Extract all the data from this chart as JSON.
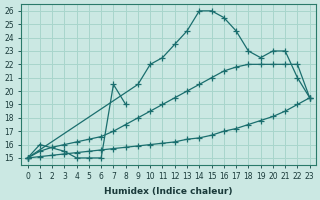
{
  "xlabel": "Humidex (Indice chaleur)",
  "bg_color": "#cbe8e3",
  "grid_color": "#a8d5cc",
  "line_color": "#1a6e6e",
  "xlim": [
    -0.5,
    23.5
  ],
  "ylim": [
    14.5,
    26.5
  ],
  "xticks": [
    0,
    1,
    2,
    3,
    4,
    5,
    6,
    7,
    8,
    9,
    10,
    11,
    12,
    13,
    14,
    15,
    16,
    17,
    18,
    19,
    20,
    21,
    22,
    23
  ],
  "yticks": [
    15,
    16,
    17,
    18,
    19,
    20,
    21,
    22,
    23,
    24,
    25,
    26
  ],
  "curve_peak_x": [
    0,
    9,
    10,
    11,
    12,
    13,
    14,
    15,
    16,
    17,
    18,
    19,
    20,
    21,
    22,
    23
  ],
  "curve_peak_y": [
    15,
    20.5,
    22,
    22.5,
    23.5,
    24.5,
    26,
    26,
    25.5,
    24.5,
    23,
    22.5,
    23,
    23,
    21,
    19.5
  ],
  "curve_mid_x": [
    0,
    1,
    2,
    3,
    4,
    5,
    6,
    7,
    8,
    9,
    10,
    11,
    12,
    13,
    14,
    15,
    16,
    17,
    18,
    19,
    20,
    21,
    22,
    23
  ],
  "curve_mid_y": [
    15,
    15.5,
    15.8,
    16,
    16.2,
    16.4,
    16.6,
    17,
    17.5,
    18,
    18.5,
    19,
    19.5,
    20,
    20.5,
    21,
    21.5,
    21.8,
    22,
    22,
    22,
    22,
    22,
    19.5
  ],
  "curve_flat_x": [
    0,
    1,
    2,
    3,
    4,
    5,
    6,
    7,
    8,
    9,
    10,
    11,
    12,
    13,
    14,
    15,
    16,
    17,
    18,
    19,
    20,
    21,
    22,
    23
  ],
  "curve_flat_y": [
    15,
    15.1,
    15.2,
    15.3,
    15.4,
    15.5,
    15.6,
    15.7,
    15.8,
    15.9,
    16,
    16.1,
    16.2,
    16.4,
    16.5,
    16.7,
    17,
    17.2,
    17.5,
    17.8,
    18.1,
    18.5,
    19,
    19.5
  ],
  "curve_zig_x": [
    0,
    1,
    3,
    4,
    5,
    6,
    7,
    8
  ],
  "curve_zig_y": [
    15,
    16,
    15.5,
    15,
    15,
    15,
    20.5,
    19
  ]
}
